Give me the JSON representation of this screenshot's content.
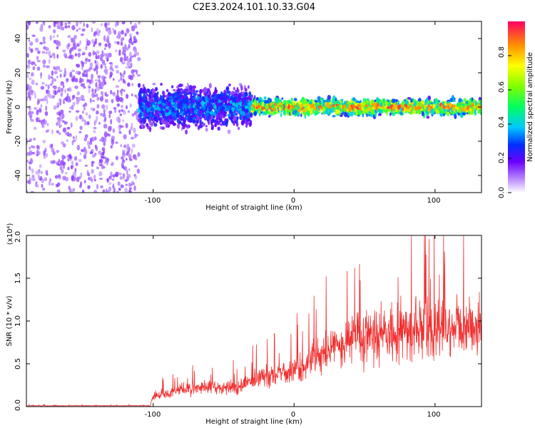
{
  "title": "C2E3.2024.101.10.33.G04",
  "chart_data": [
    {
      "type": "heatmap",
      "xlabel": "Height of straight line (km)",
      "ylabel": "Frequency (Hz)",
      "xlim": [
        -190,
        133
      ],
      "ylim": [
        -50,
        50
      ],
      "xticks": [
        -100,
        0,
        100
      ],
      "yticks": [
        -40,
        -20,
        0,
        20,
        40
      ],
      "xtick_labels": [
        "-100",
        "0",
        "100"
      ],
      "ytick_labels": [
        "-40",
        "-20",
        "0",
        "20",
        "40"
      ],
      "colorbar": {
        "label": "Normalized spectral amplitude",
        "range": [
          0,
          1
        ],
        "ticks": [
          0,
          0.2,
          0.4,
          0.6,
          0.8
        ],
        "tick_labels": [
          "0.0",
          "0.2",
          "0.4",
          "0.6",
          "0.8"
        ]
      },
      "regions": [
        {
          "x": [
            -190,
            -110
          ],
          "freq_spread": 50,
          "amplitude": 0.15
        },
        {
          "x": [
            -110,
            -30
          ],
          "freq_spread": 10,
          "amplitude": 0.3
        },
        {
          "x": [
            -30,
            133
          ],
          "freq_spread": 4,
          "amplitude": 0.7
        }
      ]
    },
    {
      "type": "line",
      "xlabel": "Height of straight line (km)",
      "ylabel": "SNR (10 * v/v)",
      "y_multiplier": "(x10⁴)",
      "xlim": [
        -190,
        133
      ],
      "ylim": [
        0,
        2.0
      ],
      "xticks": [
        -100,
        0,
        100
      ],
      "yticks": [
        0,
        0.5,
        1.0,
        1.5,
        2.0
      ],
      "xtick_labels": [
        "-100",
        "0",
        "100"
      ],
      "ytick_labels": [
        "0.0",
        "0.5",
        "1.0",
        "1.5",
        "2.0"
      ],
      "color": "#f03030",
      "series_trend": {
        "x": [
          -190,
          -150,
          -102,
          -100,
          -80,
          -60,
          -40,
          -20,
          0,
          10,
          20,
          30,
          40,
          60,
          80,
          100,
          120,
          133
        ],
        "y": [
          0.01,
          0.01,
          0.01,
          0.12,
          0.2,
          0.22,
          0.23,
          0.35,
          0.42,
          0.5,
          0.62,
          0.7,
          0.8,
          0.85,
          0.9,
          0.93,
          0.95,
          0.95
        ]
      }
    }
  ]
}
